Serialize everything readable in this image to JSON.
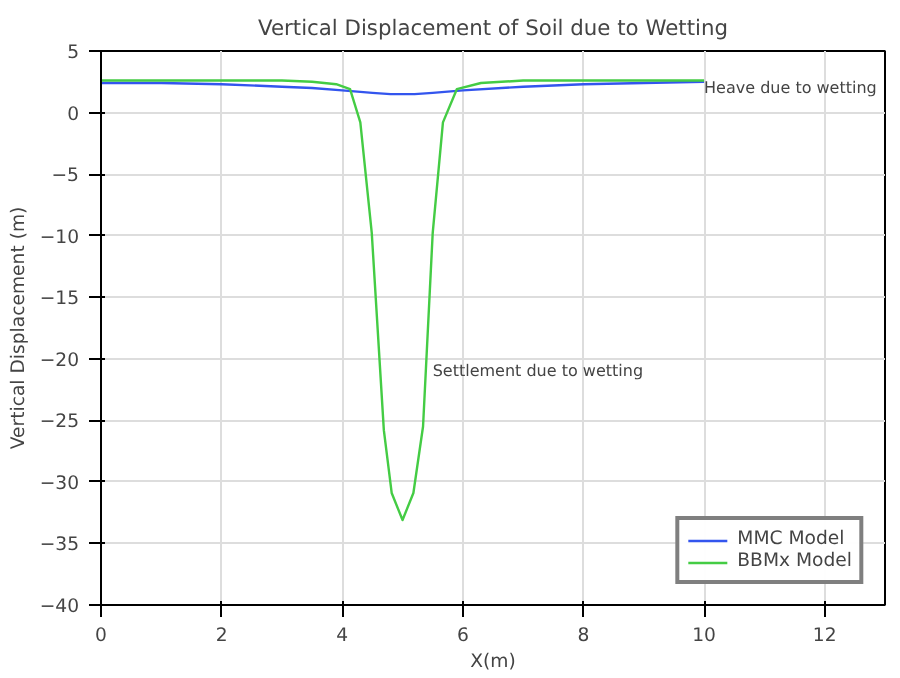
{
  "chart_data": {
    "type": "line",
    "title": "Vertical Displacement of Soil due to Wetting",
    "xlabel": "X(m)",
    "ylabel": "Vertical Displacement (m)",
    "xlim": [
      0,
      13
    ],
    "ylim": [
      -40,
      5
    ],
    "xticks": [
      0,
      2,
      4,
      6,
      8,
      10,
      12
    ],
    "yticks": [
      -40,
      -35,
      -30,
      -25,
      -20,
      -15,
      -10,
      -5,
      0,
      5
    ],
    "grid": true,
    "legend": "bottom right",
    "series": [
      {
        "name": "MMC Model",
        "color": "#3355ee",
        "x": [
          0,
          1,
          2,
          3,
          3.5,
          4,
          4.5,
          4.8,
          5.2,
          5.5,
          6,
          7,
          8,
          9,
          10
        ],
        "values": [
          2.4,
          2.4,
          2.3,
          2.1,
          2.0,
          1.8,
          1.6,
          1.5,
          1.5,
          1.6,
          1.8,
          2.1,
          2.3,
          2.4,
          2.5
        ]
      },
      {
        "name": "BBMx Model",
        "color": "#44cc44",
        "x": [
          0,
          1,
          2,
          3,
          3.5,
          3.9,
          4.13,
          4.3,
          4.49,
          4.69,
          4.82,
          5.0,
          5.18,
          5.34,
          5.5,
          5.67,
          5.9,
          6.3,
          7,
          8,
          9,
          10
        ],
        "values": [
          2.6,
          2.6,
          2.6,
          2.6,
          2.5,
          2.3,
          1.9,
          -0.8,
          -9.8,
          -25.8,
          -30.9,
          -33.1,
          -30.9,
          -25.5,
          -9.8,
          -0.8,
          1.9,
          2.4,
          2.6,
          2.6,
          2.6,
          2.6
        ]
      }
    ],
    "annotations": [
      {
        "text": "Heave due to wetting",
        "x": 10,
        "y": 2
      },
      {
        "text": "Settlement due to wetting",
        "x": 5.5,
        "y": -21
      }
    ]
  }
}
